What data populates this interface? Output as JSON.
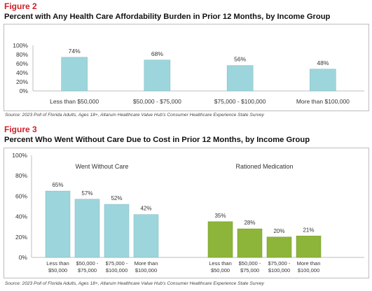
{
  "figure2": {
    "label": "Figure 2",
    "title": "Percent with Any Health Care Affordability Burden in Prior 12 Months, by Income Group",
    "source": "Source: 2023 Poll of Florida Adults, Ages 18+, Altarum Healthcare Value Hub's Consumer Healthcare Experience State Survey"
  },
  "figure3": {
    "label": "Figure 3",
    "title": "Percent Who Went Without Care Due to Cost in Prior 12 Months, by Income Group",
    "source": "Source: 2023 Poll of Florida Adults, Ages 18+, Altarum Healthcare Value Hub's Consumer Healthcare Experience State Survey"
  },
  "chart_data": [
    {
      "type": "bar",
      "title": "Percent with Any Health Care Affordability Burden in Prior 12 Months, by Income Group",
      "categories": [
        "Less than $50,000",
        "$50,000 - $75,000",
        "$75,000 - $100,000",
        "More than $100,000"
      ],
      "values": [
        74,
        68,
        56,
        48
      ],
      "data_labels": [
        "74%",
        "68%",
        "56%",
        "48%"
      ],
      "y_ticks": [
        "0%",
        "20%",
        "40%",
        "60%",
        "80%",
        "100%"
      ],
      "ylim": [
        0,
        100
      ],
      "color": "#9dd5dc",
      "grid": false,
      "legend": "none"
    },
    {
      "type": "bar",
      "title": "Percent Who Went Without Care Due to Cost in Prior 12 Months, by Income Group",
      "groups": [
        {
          "name": "Went Without Care",
          "color": "#9dd5dc",
          "categories": [
            [
              "Less than",
              "$50,000"
            ],
            [
              "$50,000 -",
              "$75,000"
            ],
            [
              "$75,000 -",
              "$100,000"
            ],
            [
              "More than",
              "$100,000"
            ]
          ],
          "values": [
            65,
            57,
            52,
            42
          ],
          "data_labels": [
            "65%",
            "57%",
            "52%",
            "42%"
          ]
        },
        {
          "name": "Rationed Medication",
          "color": "#8db53a",
          "categories": [
            [
              "Less than",
              "$50,000"
            ],
            [
              "$50,000 -",
              "$75,000"
            ],
            [
              "$75,000 -",
              "$100,000"
            ],
            [
              "More than",
              "$100,000"
            ]
          ],
          "values": [
            35,
            28,
            20,
            21
          ],
          "data_labels": [
            "35%",
            "28%",
            "20%",
            "21%"
          ]
        }
      ],
      "y_ticks": [
        "0%",
        "20%",
        "40%",
        "60%",
        "80%",
        "100%"
      ],
      "ylim": [
        0,
        100
      ],
      "grid": false,
      "legend": "none"
    }
  ]
}
